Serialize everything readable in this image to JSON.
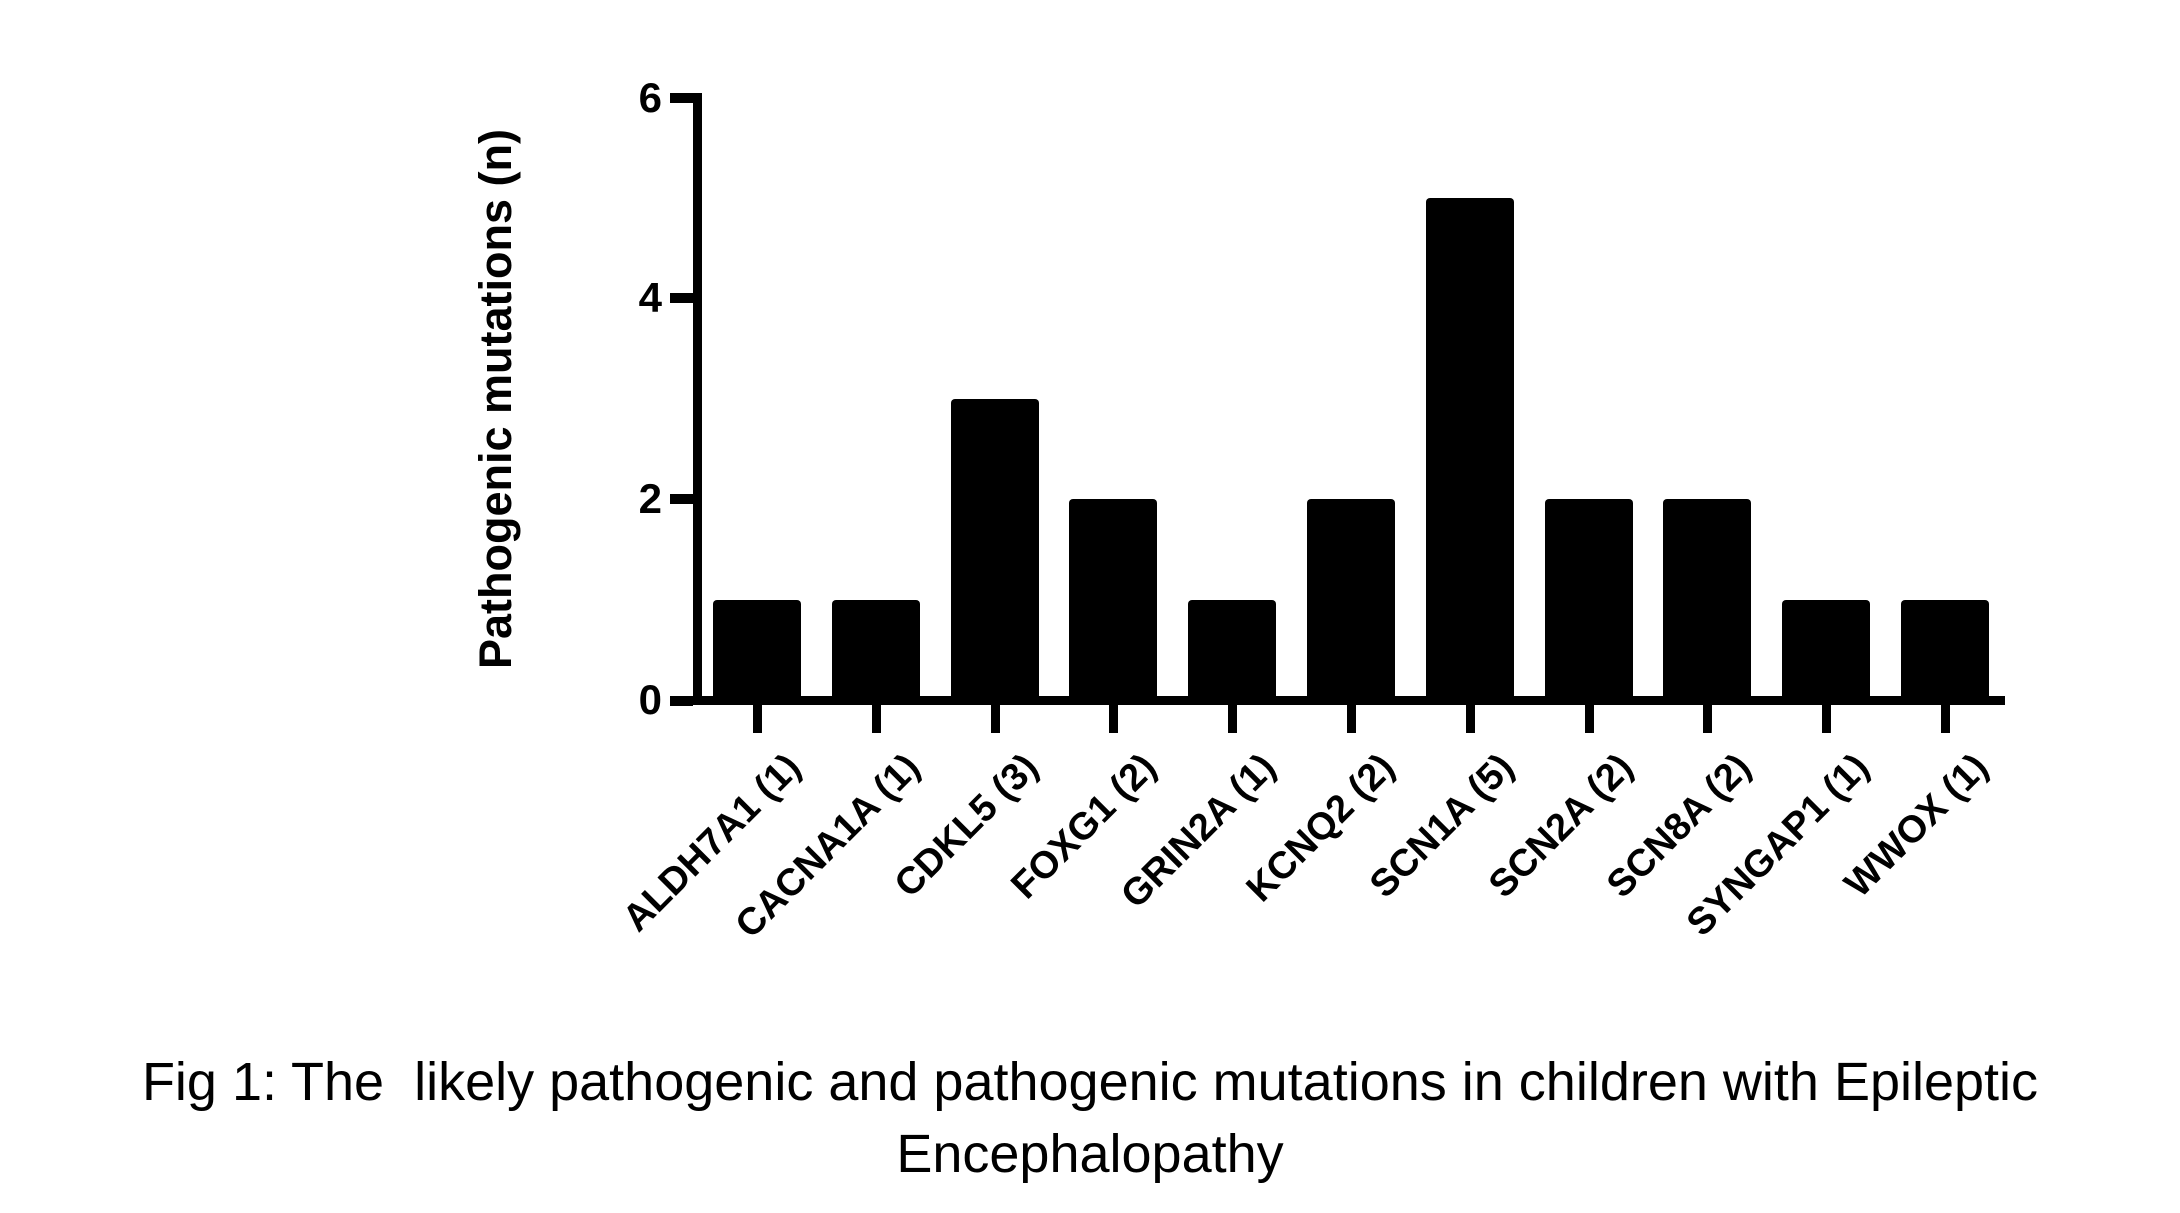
{
  "chart_data": {
    "type": "bar",
    "title": "",
    "categories": [
      "ALDH7A1 (1)",
      "CACNA1A (1)",
      "CDKL5 (3)",
      "FOXG1 (2)",
      "GRIN2A (1)",
      "KCNQ2 (2)",
      "SCN1A (5)",
      "SCN2A (2)",
      "SCN8A (2)",
      "SYNGAP1 (1)",
      "WWOX (1)"
    ],
    "values": [
      1,
      1,
      3,
      2,
      1,
      2,
      5,
      2,
      2,
      1,
      1
    ],
    "xlabel": "",
    "ylabel": "Pathogenic mutations (n)",
    "ylim": [
      0,
      6
    ],
    "yticks": [
      0,
      2,
      4,
      6
    ],
    "bar_color": "#000000",
    "axis_color": "#000000",
    "background_color": "#ffffff",
    "grid": false,
    "legend": "none",
    "x_label_rotation_deg": 45
  },
  "caption": {
    "line1": "Fig 1: The  likely pathogenic and pathogenic mutations in children with Epileptic",
    "line2": "Encephalopathy"
  }
}
